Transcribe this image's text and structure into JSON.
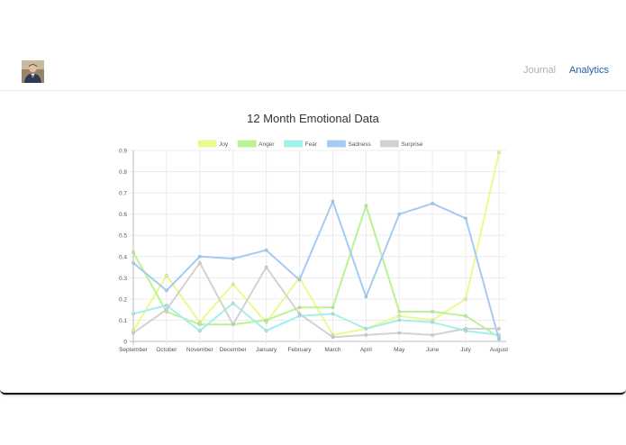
{
  "nav": {
    "journal_label": "Journal",
    "analytics_label": "Analytics"
  },
  "avatar": {
    "alt": "user profile photo"
  },
  "colors": {
    "active_nav": "#1f5fa8",
    "inactive_nav": "#a8b0b8"
  },
  "chart_data": {
    "type": "line",
    "title": "12 Month Emotional Data",
    "xlabel": "",
    "ylabel": "",
    "categories": [
      "September",
      "October",
      "November",
      "December",
      "January",
      "February",
      "March",
      "April",
      "May",
      "June",
      "July",
      "August"
    ],
    "ylim": [
      0,
      0.9
    ],
    "yticks": [
      "0",
      "0.1",
      "0.2",
      "0.3",
      "0.4",
      "0.5",
      "0.6",
      "0.7",
      "0.8",
      "0.9"
    ],
    "grid": true,
    "legend_position": "top",
    "series": [
      {
        "name": "Joy",
        "color": "#ecf98f",
        "values": [
          0.05,
          0.31,
          0.09,
          0.27,
          0.09,
          0.3,
          0.03,
          0.06,
          0.12,
          0.1,
          0.2,
          0.89
        ]
      },
      {
        "name": "Anger",
        "color": "#bbf393",
        "values": [
          0.42,
          0.14,
          0.08,
          0.08,
          0.1,
          0.16,
          0.16,
          0.64,
          0.14,
          0.14,
          0.12,
          0.02
        ]
      },
      {
        "name": "Fear",
        "color": "#a3f0ec",
        "values": [
          0.13,
          0.17,
          0.05,
          0.18,
          0.05,
          0.12,
          0.13,
          0.06,
          0.1,
          0.09,
          0.05,
          0.03
        ]
      },
      {
        "name": "Sadness",
        "color": "#a6cbf3",
        "values": [
          0.37,
          0.24,
          0.4,
          0.39,
          0.43,
          0.29,
          0.66,
          0.21,
          0.6,
          0.65,
          0.58,
          0.01
        ]
      },
      {
        "name": "Surprise",
        "color": "#d2d2d2",
        "values": [
          0.04,
          0.15,
          0.37,
          0.08,
          0.35,
          0.13,
          0.02,
          0.03,
          0.04,
          0.03,
          0.06,
          0.06
        ]
      }
    ]
  }
}
